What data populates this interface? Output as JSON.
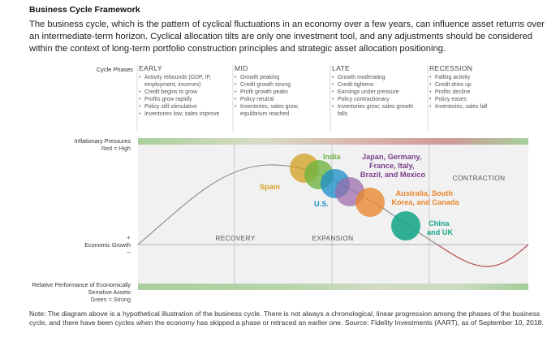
{
  "title": "Business Cycle Framework",
  "intro": "The business cycle, which is the pattern of cyclical fluctuations in an economy over a few years, can influence asset returns over an intermediate-term horizon. Cyclical allocation tilts are only one investment tool, and any adjustments should be considered within the context of long-term portfolio construction principles and strategic asset allocation positioning.",
  "phases_label": "Cycle Phases",
  "phases": [
    {
      "name": "EARLY",
      "bullets": [
        "Activity rebounds (GDP, IP, employment, incomes)",
        "Credit begins to grow",
        "Profits grow rapidly",
        "Policy still stimulative",
        "Inventories low; sales improve"
      ]
    },
    {
      "name": "MID",
      "bullets": [
        "Growth peaking",
        "Credit growth strong",
        "Profit growth peaks",
        "Policy neutral",
        "Inventories, sales grow; equilibrium reached"
      ]
    },
    {
      "name": "LATE",
      "bullets": [
        "Growth moderating",
        "Credit tightens",
        "Earnings under pressure",
        "Policy contractionary",
        "Inventories grow; sales growth falls"
      ]
    },
    {
      "name": "RECESSION",
      "bullets": [
        "Falling activity",
        "Credit dries up",
        "Profits decline",
        "Policy eases",
        "Inventories, sales fall"
      ]
    }
  ],
  "inflation_label": "Inflationary Pressures",
  "inflation_scale": "Red = High",
  "growth_label": "Economic Growth",
  "growth_plus": "+",
  "growth_minus": "–",
  "relative_label": "Relative Performance of Economically Sensitive Assets",
  "relative_scale": "Green = Strong",
  "region_labels": {
    "recovery": "RECOVERY",
    "expansion": "EXPANSION",
    "contraction": "CONTRACTION"
  },
  "countries": [
    {
      "name": "Spain",
      "color": "#d4a326"
    },
    {
      "name": "India",
      "color": "#6db33f"
    },
    {
      "name": "U.S.",
      "color": "#1f8fc9"
    },
    {
      "name": "Japan, Germany, France, Italy, Brazil, and Mexico",
      "lines": [
        "Japan, Germany,",
        "France, Italy,",
        "Brazil, and Mexico"
      ],
      "color": "#7b3f8c"
    },
    {
      "name": "Australia, South Korea, and Canada",
      "lines": [
        "Australia, South",
        "Korea, and Canada"
      ],
      "color": "#e8862c"
    },
    {
      "name": "China and UK",
      "lines": [
        "China",
        "and UK"
      ],
      "color": "#15a589"
    }
  ],
  "colors": {
    "curve_up": "#8a8a8a",
    "curve_down": "#b5474b",
    "band_green": "#a7cfa0",
    "band_red": "#cf9a97"
  },
  "note": "Note: The diagram above is a hypothetical illustration of the business cycle. There is not always a chronological, linear progression among the phases of the business cycle, and there have been cycles when the economy has skipped a phase or retraced an earlier one. Source: Fidelity Investments (AART), as of September 10, 2018."
}
